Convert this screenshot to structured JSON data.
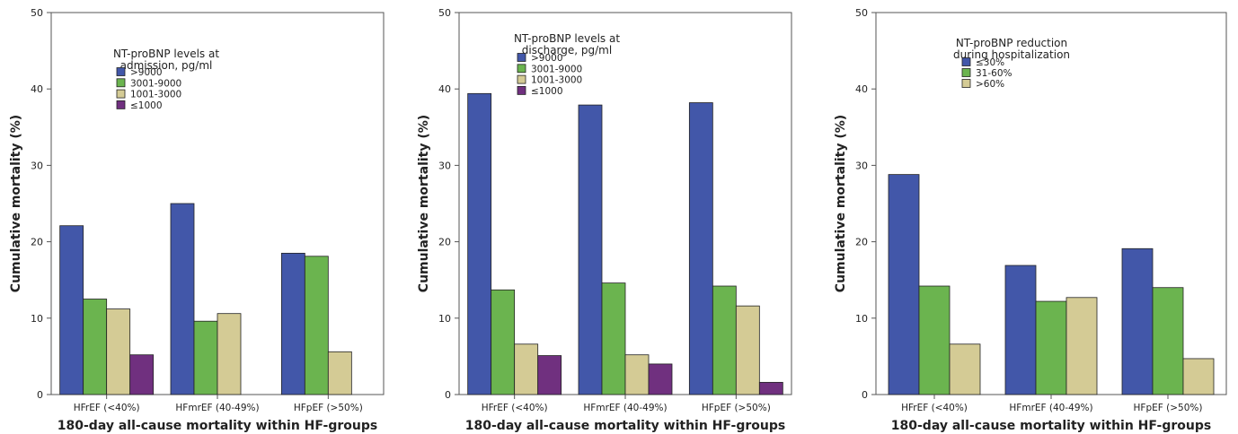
{
  "chart_data": [
    {
      "type": "bar",
      "title": "",
      "xlabel": "180-day all-cause mortality within HF-groups",
      "ylabel": "Cumulative mortality (%)",
      "ylim": [
        0,
        50
      ],
      "yticks": [
        "0",
        "10",
        "20",
        "30",
        "40",
        "50"
      ],
      "categories": [
        "HFrEF (<40%)",
        "HFmrEF (40-49%)",
        "HFpEF (>50%)"
      ],
      "legend_title": [
        "NT-proBNP levels at",
        "admission, pg/ml"
      ],
      "legend_position": "top-left",
      "series": [
        {
          "name": ">9000",
          "color": "#4257a9",
          "values": [
            22.1,
            25.0,
            18.5
          ]
        },
        {
          "name": "3001-9000",
          "color": "#6bb44f",
          "values": [
            12.5,
            9.6,
            18.1
          ]
        },
        {
          "name": "1001-3000",
          "color": "#d4cb95",
          "values": [
            11.2,
            10.6,
            5.6
          ]
        },
        {
          "name": "≤1000",
          "color": "#70307f",
          "values": [
            5.2,
            null,
            null
          ]
        }
      ]
    },
    {
      "type": "bar",
      "title": "",
      "xlabel": "180-day all-cause mortality within HF-groups",
      "ylabel": "Cumulative mortality (%)",
      "ylim": [
        0,
        50
      ],
      "yticks": [
        "0",
        "10",
        "20",
        "30",
        "40",
        "50"
      ],
      "categories": [
        "HFrEF (<40%)",
        "HFmrEF (40-49%)",
        "HFpEF (>50%)"
      ],
      "legend_title": [
        "NT-proBNP levels at",
        "discharge, pg/ml"
      ],
      "legend_position": "top-left",
      "series": [
        {
          "name": ">9000",
          "color": "#4257a9",
          "values": [
            39.4,
            37.9,
            38.2
          ]
        },
        {
          "name": "3001-9000",
          "color": "#6bb44f",
          "values": [
            13.7,
            14.6,
            14.2
          ]
        },
        {
          "name": "1001-3000",
          "color": "#d4cb95",
          "values": [
            6.6,
            5.2,
            11.6
          ]
        },
        {
          "name": "≤1000",
          "color": "#70307f",
          "values": [
            5.1,
            4.0,
            1.6
          ]
        }
      ]
    },
    {
      "type": "bar",
      "title": "",
      "xlabel": "180-day all-cause mortality within HF-groups",
      "ylabel": "Cumulative mortality (%)",
      "ylim": [
        0,
        50
      ],
      "yticks": [
        "0",
        "10",
        "20",
        "30",
        "40",
        "50"
      ],
      "categories": [
        "HFrEF (<40%)",
        "HFmrEF (40-49%)",
        "HFpEF (>50%)"
      ],
      "legend_title": [
        "NT-proBNP reduction",
        "during hospitalization"
      ],
      "legend_position": "top-left",
      "series": [
        {
          "name": "≤30%",
          "color": "#4257a9",
          "values": [
            28.8,
            16.9,
            19.1
          ]
        },
        {
          "name": "31-60%",
          "color": "#6bb44f",
          "values": [
            14.2,
            12.2,
            14.0
          ]
        },
        {
          "name": ">60%",
          "color": "#d4cb95",
          "values": [
            6.6,
            12.7,
            4.7
          ]
        }
      ]
    }
  ]
}
